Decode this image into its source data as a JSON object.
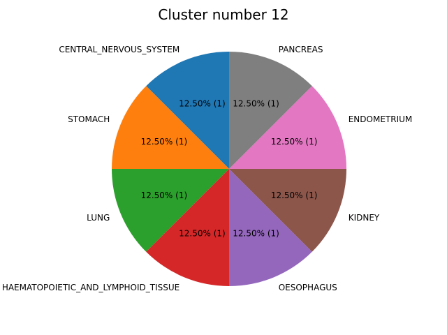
{
  "chart_data": {
    "type": "pie",
    "title": "Cluster number 12",
    "start_angle_deg": 90,
    "direction": "counterclockwise",
    "slices": [
      {
        "label": "CENTRAL_NERVOUS_SYSTEM",
        "count": 1,
        "percent": 12.5,
        "pct_text": "12.50%  (1)",
        "color": "#1f77b4"
      },
      {
        "label": "STOMACH",
        "count": 1,
        "percent": 12.5,
        "pct_text": "12.50%  (1)",
        "color": "#ff7f0e"
      },
      {
        "label": "LUNG",
        "count": 1,
        "percent": 12.5,
        "pct_text": "12.50%  (1)",
        "color": "#2ca02c"
      },
      {
        "label": "HAEMATOPOIETIC_AND_LYMPHOID_TISSUE",
        "count": 1,
        "percent": 12.5,
        "pct_text": "12.50%  (1)",
        "color": "#d62728"
      },
      {
        "label": "OESOPHAGUS",
        "count": 1,
        "percent": 12.5,
        "pct_text": "12.50%  (1)",
        "color": "#9467bd"
      },
      {
        "label": "KIDNEY",
        "count": 1,
        "percent": 12.5,
        "pct_text": "12.50%  (1)",
        "color": "#8c564b"
      },
      {
        "label": "ENDOMETRIUM",
        "count": 1,
        "percent": 12.5,
        "pct_text": "12.50%  (1)",
        "color": "#e377c2"
      },
      {
        "label": "PANCREAS",
        "count": 1,
        "percent": 12.5,
        "pct_text": "12.50%  (1)",
        "color": "#7f7f7f"
      }
    ]
  }
}
